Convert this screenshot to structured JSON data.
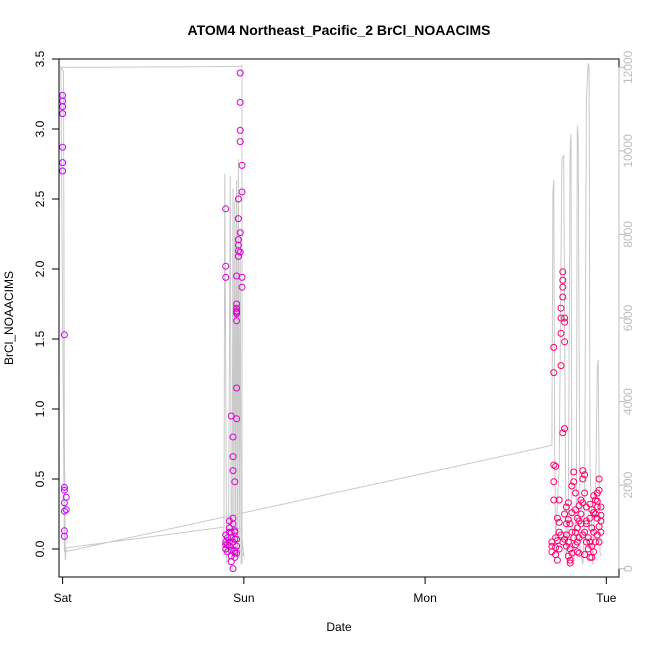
{
  "chart_data": {
    "type": "scatter",
    "title": "ATOM4 Northeast_Pacific_2 BrCl_NOAACIMS",
    "xlabel": "Date",
    "ylabel": "BrCl_NOAACIMS",
    "x_unit": "days since Saturday 00:00",
    "xlim": [
      -0.02,
      3.07
    ],
    "ylim": [
      -0.2,
      3.5
    ],
    "x_ticks": [
      {
        "label": "Sat",
        "value": 0
      },
      {
        "label": "Sun",
        "value": 1
      },
      {
        "label": "Mon",
        "value": 2
      },
      {
        "label": "Tue",
        "value": 3
      }
    ],
    "y_ticks": [
      {
        "label": "0.0",
        "value": 0.0
      },
      {
        "label": "0.5",
        "value": 0.5
      },
      {
        "label": "1.0",
        "value": 1.0
      },
      {
        "label": "1.5",
        "value": 1.5
      },
      {
        "label": "2.0",
        "value": 2.0
      },
      {
        "label": "2.5",
        "value": 2.5
      },
      {
        "label": "3.0",
        "value": 3.0
      },
      {
        "label": "3.5",
        "value": 3.5
      }
    ],
    "y2lim": [
      -200,
      12200
    ],
    "y2_ticks": [
      {
        "label": "0",
        "value": 0
      },
      {
        "label": "2000",
        "value": 2000
      },
      {
        "label": "4000",
        "value": 4000
      },
      {
        "label": "6000",
        "value": 6000
      },
      {
        "label": "8000",
        "value": 8000
      },
      {
        "label": "10000",
        "value": 10000
      },
      {
        "label": "12000",
        "value": 12000
      }
    ],
    "grid": false,
    "colors": {
      "points_start": "#cc00ff",
      "points_end": "#ff0066",
      "altitude_line": "#c8c8c8"
    },
    "series": [
      {
        "kind": "points",
        "points": [
          [
            0.0,
            3.24
          ],
          [
            0.0,
            3.2
          ],
          [
            0.0,
            3.16
          ],
          [
            0.0,
            3.11
          ],
          [
            0.0,
            2.87
          ],
          [
            0.0,
            2.76
          ],
          [
            0.0,
            2.7
          ],
          [
            0.01,
            1.53
          ],
          [
            0.01,
            0.44
          ],
          [
            0.01,
            0.42
          ],
          [
            0.02,
            0.37
          ],
          [
            0.01,
            0.33
          ],
          [
            0.02,
            0.28
          ],
          [
            0.01,
            0.27
          ],
          [
            0.01,
            0.13
          ],
          [
            0.01,
            0.09
          ],
          [
            0.9,
            2.43
          ],
          [
            0.9,
            2.02
          ],
          [
            0.9,
            1.94
          ],
          [
            0.9,
            0.1
          ],
          [
            0.9,
            0.05
          ],
          [
            0.9,
            0.03
          ],
          [
            0.9,
            0.0
          ],
          [
            0.91,
            -0.02
          ],
          [
            0.91,
            0.08
          ],
          [
            0.92,
            0.12
          ],
          [
            0.92,
            0.2
          ],
          [
            0.92,
            0.15
          ],
          [
            0.92,
            0.02
          ],
          [
            0.93,
            -0.01
          ],
          [
            0.93,
            -0.05
          ],
          [
            0.93,
            -0.09
          ],
          [
            0.93,
            0.95
          ],
          [
            0.94,
            0.8
          ],
          [
            0.94,
            0.66
          ],
          [
            0.94,
            0.56
          ],
          [
            0.95,
            0.48
          ],
          [
            0.94,
            -0.14
          ],
          [
            0.95,
            -0.03
          ],
          [
            0.95,
            0.07
          ],
          [
            0.95,
            0.12
          ],
          [
            0.96,
            1.75
          ],
          [
            0.96,
            1.72
          ],
          [
            0.96,
            1.7
          ],
          [
            0.96,
            1.69
          ],
          [
            0.96,
            1.68
          ],
          [
            0.96,
            1.63
          ],
          [
            0.96,
            1.95
          ],
          [
            0.96,
            1.15
          ],
          [
            0.96,
            0.93
          ],
          [
            0.97,
            2.09
          ],
          [
            0.97,
            2.17
          ],
          [
            0.97,
            2.13
          ],
          [
            0.97,
            2.21
          ],
          [
            0.97,
            2.36
          ],
          [
            0.97,
            2.5
          ],
          [
            0.98,
            2.91
          ],
          [
            0.98,
            2.99
          ],
          [
            0.98,
            3.19
          ],
          [
            0.98,
            3.4
          ],
          [
            0.98,
            2.26
          ],
          [
            0.98,
            2.12
          ],
          [
            0.99,
            2.74
          ],
          [
            0.99,
            2.55
          ],
          [
            0.99,
            1.94
          ],
          [
            0.99,
            1.87
          ],
          [
            0.94,
            0.05
          ],
          [
            0.95,
            -0.01
          ],
          [
            0.96,
            0.02
          ],
          [
            0.96,
            -0.03
          ],
          [
            0.95,
            0.13
          ],
          [
            0.94,
            0.18
          ],
          [
            0.93,
            0.08
          ],
          [
            0.92,
            0.05
          ],
          [
            0.91,
            0.03
          ],
          [
            0.94,
            0.22
          ],
          [
            0.95,
            -0.06
          ],
          [
            0.96,
            0.07
          ],
          [
            0.93,
            0.12
          ],
          [
            2.7,
            0.05
          ],
          [
            2.7,
            0.02
          ],
          [
            2.7,
            -0.02
          ],
          [
            2.71,
            1.26
          ],
          [
            2.71,
            1.44
          ],
          [
            2.71,
            0.6
          ],
          [
            2.72,
            0.59
          ],
          [
            2.71,
            0.48
          ],
          [
            2.71,
            0.35
          ],
          [
            2.72,
            0.08
          ],
          [
            2.72,
            0.01
          ],
          [
            2.73,
            -0.08
          ],
          [
            2.73,
            0.22
          ],
          [
            2.74,
            0.19
          ],
          [
            2.74,
            0.12
          ],
          [
            2.74,
            0.35
          ],
          [
            2.75,
            1.65
          ],
          [
            2.75,
            1.72
          ],
          [
            2.75,
            1.54
          ],
          [
            2.75,
            1.31
          ],
          [
            2.76,
            1.92
          ],
          [
            2.76,
            1.98
          ],
          [
            2.76,
            1.87
          ],
          [
            2.76,
            1.8
          ],
          [
            2.77,
            1.65
          ],
          [
            2.77,
            1.62
          ],
          [
            2.77,
            1.48
          ],
          [
            2.76,
            0.83
          ],
          [
            2.77,
            0.86
          ],
          [
            2.77,
            0.25
          ],
          [
            2.78,
            0.3
          ],
          [
            2.78,
            0.18
          ],
          [
            2.78,
            0.1
          ],
          [
            2.79,
            0.05
          ],
          [
            2.79,
            -0.05
          ],
          [
            2.8,
            -0.08
          ],
          [
            2.8,
            0.0
          ],
          [
            2.81,
            0.12
          ],
          [
            2.81,
            0.45
          ],
          [
            2.82,
            0.48
          ],
          [
            2.82,
            0.55
          ],
          [
            2.83,
            0.4
          ],
          [
            2.83,
            0.28
          ],
          [
            2.84,
            0.15
          ],
          [
            2.84,
            0.05
          ],
          [
            2.85,
            -0.03
          ],
          [
            2.85,
            0.08
          ],
          [
            2.86,
            0.18
          ],
          [
            2.86,
            0.35
          ],
          [
            2.87,
            0.5
          ],
          [
            2.87,
            0.56
          ],
          [
            2.88,
            0.53
          ],
          [
            2.88,
            0.4
          ],
          [
            2.89,
            0.3
          ],
          [
            2.89,
            0.2
          ],
          [
            2.9,
            0.08
          ],
          [
            2.9,
            0.0
          ],
          [
            2.91,
            -0.06
          ],
          [
            2.91,
            0.05
          ],
          [
            2.92,
            0.15
          ],
          [
            2.92,
            0.28
          ],
          [
            2.93,
            0.38
          ],
          [
            2.94,
            0.35
          ],
          [
            2.94,
            0.25
          ],
          [
            2.95,
            0.3
          ],
          [
            2.95,
            0.4
          ],
          [
            2.96,
            0.5
          ],
          [
            2.96,
            0.42
          ],
          [
            2.97,
            0.3
          ],
          [
            2.97,
            0.2
          ],
          [
            2.96,
            0.16
          ],
          [
            2.95,
            0.1
          ],
          [
            2.94,
            0.05
          ],
          [
            2.93,
            -0.02
          ],
          [
            2.92,
            -0.06
          ],
          [
            2.88,
            0.12
          ],
          [
            2.86,
            0.25
          ],
          [
            2.84,
            0.22
          ],
          [
            2.82,
            0.08
          ],
          [
            2.8,
            0.18
          ],
          [
            2.78,
            0.02
          ],
          [
            2.76,
            0.05
          ],
          [
            2.74,
            0.0
          ],
          [
            2.72,
            -0.04
          ],
          [
            2.79,
            0.21
          ],
          [
            2.81,
            -0.03
          ],
          [
            2.83,
            0.03
          ],
          [
            2.85,
            0.2
          ],
          [
            2.87,
            0.1
          ],
          [
            2.89,
            0.05
          ],
          [
            2.91,
            0.22
          ],
          [
            2.93,
            0.12
          ],
          [
            2.95,
            0.22
          ],
          [
            2.97,
            0.12
          ],
          [
            2.73,
            0.06
          ],
          [
            2.75,
            0.1
          ],
          [
            2.77,
            0.07
          ],
          [
            2.79,
            0.33
          ],
          [
            2.81,
            0.26
          ],
          [
            2.83,
            0.12
          ],
          [
            2.85,
            0.31
          ],
          [
            2.87,
            0.33
          ],
          [
            2.89,
            0.18
          ],
          [
            2.91,
            0.32
          ],
          [
            2.93,
            0.26
          ],
          [
            2.95,
            0.34
          ],
          [
            2.97,
            0.24
          ],
          [
            2.8,
            -0.1
          ],
          [
            2.84,
            -0.02
          ],
          [
            2.88,
            -0.04
          ],
          [
            2.92,
            0.02
          ],
          [
            2.96,
            0.05
          ]
        ]
      },
      {
        "kind": "altitude_line",
        "axis": "right",
        "points": [
          [
            -0.01,
            12000
          ],
          [
            0.98,
            12020
          ],
          [
            0.99,
            12050
          ],
          [
            0.99,
            150
          ],
          [
            0.985,
            100
          ],
          [
            0.98,
            8000
          ],
          [
            0.975,
            250
          ],
          [
            0.97,
            9800
          ],
          [
            0.965,
            300
          ],
          [
            0.96,
            9300
          ],
          [
            0.955,
            400
          ],
          [
            0.95,
            8800
          ],
          [
            0.945,
            300
          ],
          [
            0.94,
            9100
          ],
          [
            0.935,
            500
          ],
          [
            0.93,
            400
          ],
          [
            0.925,
            9400
          ],
          [
            0.915,
            200
          ],
          [
            0.905,
            150
          ],
          [
            0.895,
            9450
          ],
          [
            0.89,
            300
          ],
          [
            0.92,
            700
          ],
          [
            0.95,
            600
          ],
          [
            1.0,
            300
          ],
          [
            0.985,
            900
          ],
          [
            0.96,
            1000
          ],
          [
            0.93,
            900
          ],
          [
            0.9,
            1000
          ],
          [
            0.02,
            500
          ],
          [
            0.015,
            200
          ],
          [
            0.01,
            3000
          ],
          [
            0.005,
            11900
          ],
          [
            -0.01,
            12000
          ],
          [
            0.01,
            400
          ],
          [
            2.7,
            2950
          ],
          [
            2.705,
            9000
          ],
          [
            2.71,
            9300
          ],
          [
            2.715,
            2700
          ],
          [
            2.72,
            700
          ],
          [
            2.74,
            2400
          ],
          [
            2.755,
            9800
          ],
          [
            2.765,
            9900
          ],
          [
            2.775,
            2200
          ],
          [
            2.78,
            300
          ],
          [
            2.79,
            1100
          ],
          [
            2.8,
            10000
          ],
          [
            2.805,
            10400
          ],
          [
            2.81,
            400
          ],
          [
            2.82,
            100
          ],
          [
            2.835,
            1500
          ],
          [
            2.84,
            10600
          ],
          [
            2.845,
            10300
          ],
          [
            2.855,
            500
          ],
          [
            2.87,
            100
          ],
          [
            2.88,
            1200
          ],
          [
            2.89,
            11200
          ],
          [
            2.9,
            12100
          ],
          [
            2.905,
            12000
          ],
          [
            2.91,
            2500
          ],
          [
            2.925,
            100
          ],
          [
            2.935,
            1300
          ],
          [
            2.94,
            1400
          ],
          [
            2.95,
            4800
          ],
          [
            2.955,
            5000
          ],
          [
            2.96,
            2200
          ],
          [
            2.965,
            400
          ],
          [
            2.97,
            300
          ]
        ]
      }
    ]
  }
}
